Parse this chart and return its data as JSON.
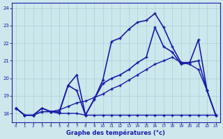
{
  "title": "Graphe des températures (°c)",
  "xlim": [
    -0.5,
    23.5
  ],
  "ylim": [
    17.5,
    24.3
  ],
  "xticks": [
    0,
    1,
    2,
    3,
    4,
    5,
    6,
    7,
    8,
    9,
    10,
    11,
    12,
    13,
    14,
    15,
    16,
    17,
    18,
    19,
    20,
    21,
    22,
    23
  ],
  "yticks": [
    18,
    19,
    20,
    21,
    22,
    23,
    24
  ],
  "bg_color": "#cce8ec",
  "line_color": "#1a1aaa",
  "grid_color": "#a0c8d0",
  "series": [
    {
      "x": [
        0,
        1,
        2,
        3,
        4,
        5,
        6,
        7,
        8,
        9,
        10,
        11,
        12,
        13,
        14,
        15,
        16,
        17,
        18,
        19,
        20,
        21,
        22,
        23
      ],
      "y": [
        18.3,
        17.9,
        17.9,
        18.1,
        18.1,
        18.0,
        18.0,
        18.0,
        17.9,
        17.9,
        17.9,
        17.9,
        17.9,
        17.9,
        17.9,
        17.9,
        17.9,
        17.9,
        17.9,
        17.9,
        17.9,
        17.9,
        17.9,
        17.9
      ],
      "linewidth": 1.0
    },
    {
      "x": [
        0,
        1,
        2,
        3,
        4,
        5,
        6,
        7,
        8,
        9,
        10,
        11,
        12,
        13,
        14,
        15,
        16,
        17,
        18,
        19,
        20,
        21,
        22,
        23
      ],
      "y": [
        18.3,
        17.9,
        17.9,
        18.1,
        18.1,
        18.2,
        18.4,
        18.6,
        18.7,
        18.9,
        19.1,
        19.4,
        19.6,
        19.9,
        20.2,
        20.5,
        20.8,
        21.0,
        21.2,
        20.9,
        20.8,
        20.5,
        19.3,
        17.9
      ],
      "linewidth": 1.0
    },
    {
      "x": [
        0,
        1,
        2,
        3,
        4,
        5,
        6,
        7,
        8,
        9,
        10,
        11,
        12,
        13,
        14,
        15,
        16,
        17,
        18,
        19,
        20,
        21,
        22,
        23
      ],
      "y": [
        18.3,
        17.9,
        17.9,
        18.3,
        18.1,
        18.1,
        19.6,
        20.2,
        17.9,
        18.8,
        19.9,
        22.1,
        22.3,
        22.8,
        23.2,
        23.3,
        23.7,
        22.9,
        21.8,
        20.9,
        20.9,
        21.0,
        19.3,
        17.9
      ],
      "linewidth": 1.2
    },
    {
      "x": [
        0,
        1,
        2,
        3,
        4,
        5,
        6,
        7,
        8,
        9,
        10,
        11,
        12,
        13,
        14,
        15,
        16,
        17,
        18,
        19,
        20,
        21,
        22,
        23
      ],
      "y": [
        18.3,
        17.9,
        17.9,
        18.3,
        18.1,
        18.1,
        19.6,
        19.3,
        17.9,
        18.8,
        19.7,
        20.0,
        20.2,
        20.5,
        20.9,
        21.2,
        22.9,
        21.8,
        21.5,
        20.8,
        20.9,
        22.2,
        19.3,
        17.9
      ],
      "linewidth": 1.2
    }
  ]
}
